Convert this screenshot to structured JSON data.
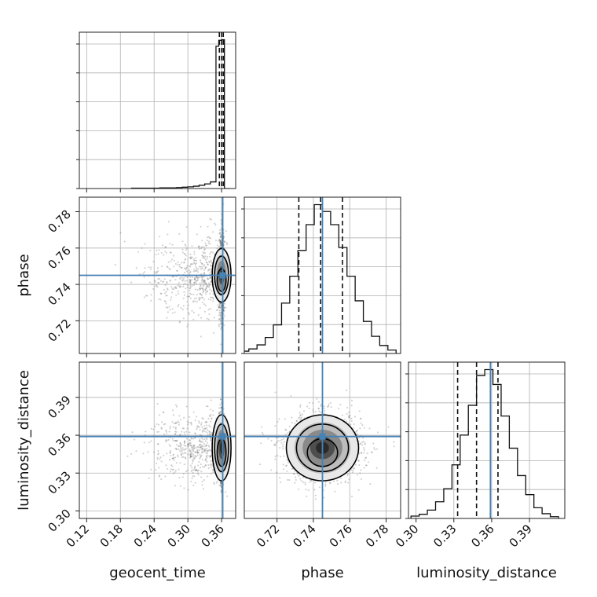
{
  "chart_data": {
    "type": "corner",
    "parameters": [
      "geocent_time",
      "phase",
      "luminosity_distance"
    ],
    "axis_labels": {
      "x": [
        "geocent_time",
        "phase",
        "luminosity_distance"
      ],
      "y": [
        "",
        "phase",
        "luminosity_distance"
      ]
    },
    "ranges": {
      "geocent_time": [
        0.107,
        0.385
      ],
      "phase": [
        0.702,
        0.788
      ],
      "luminosity_distance": [
        0.294,
        0.418
      ]
    },
    "ticks": {
      "geocent_time": [
        "0.12",
        "0.18",
        "0.24",
        "0.30",
        "0.36"
      ],
      "phase": [
        "0.72",
        "0.74",
        "0.76",
        "0.78"
      ],
      "luminosity_distance": [
        "0.30",
        "0.33",
        "0.36",
        "0.39"
      ]
    },
    "truths": {
      "geocent_time": 0.362,
      "phase": 0.745,
      "luminosity_distance": 0.359
    },
    "quantiles": {
      "geocent_time": [
        0.356,
        0.36,
        0.363
      ],
      "phase": [
        0.732,
        0.744,
        0.756
      ],
      "luminosity_distance": [
        0.333,
        0.348,
        0.365
      ]
    },
    "histograms": {
      "geocent_time": {
        "edges": [
          0.2,
          0.21,
          0.22,
          0.23,
          0.24,
          0.25,
          0.26,
          0.27,
          0.28,
          0.29,
          0.3,
          0.31,
          0.32,
          0.33,
          0.34,
          0.35,
          0.355,
          0.36,
          0.365,
          0.375
        ],
        "counts": [
          1,
          1,
          1,
          1,
          1,
          2,
          2,
          2,
          3,
          4,
          5,
          7,
          10,
          14,
          20,
          430,
          448,
          450,
          0
        ]
      },
      "phase": {
        "edges": [
          0.7,
          0.7045,
          0.709,
          0.7135,
          0.718,
          0.7225,
          0.727,
          0.7315,
          0.736,
          0.7405,
          0.745,
          0.7495,
          0.754,
          0.7585,
          0.763,
          0.7675,
          0.772,
          0.7765,
          0.781,
          0.7855
        ],
        "counts": [
          4,
          8,
          15,
          28,
          50,
          88,
          135,
          180,
          225,
          260,
          248,
          225,
          185,
          135,
          92,
          56,
          30,
          14,
          6
        ]
      },
      "luminosity_distance": {
        "edges": [
          0.296,
          0.3025,
          0.309,
          0.3155,
          0.322,
          0.3285,
          0.335,
          0.3415,
          0.348,
          0.3545,
          0.361,
          0.3675,
          0.374,
          0.3805,
          0.387,
          0.3935,
          0.4,
          0.4065,
          0.413
        ],
        "counts": [
          4,
          7,
          14,
          28,
          50,
          90,
          140,
          190,
          240,
          250,
          225,
          172,
          118,
          72,
          40,
          18,
          8,
          3
        ]
      }
    },
    "scatter_color": "#555555",
    "truth_color": "#4682b4",
    "grid": true
  }
}
